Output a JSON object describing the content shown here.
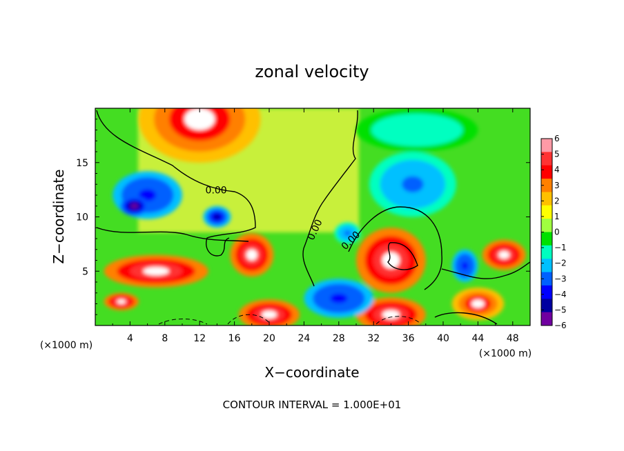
{
  "chart_data": {
    "type": "heatmap",
    "title": "zonal velocity",
    "xlabel": "X−coordinate",
    "ylabel": "Z−coordinate",
    "x_unit_left": "(×1000 m)",
    "x_unit_right": "(×1000 m)",
    "footnote": "CONTOUR INTERVAL = 1.000E+01",
    "xlim": [
      0,
      50
    ],
    "ylim": [
      0,
      20
    ],
    "x_ticks": [
      4,
      8,
      12,
      16,
      20,
      24,
      28,
      32,
      36,
      40,
      44,
      48
    ],
    "x_tick_labels": [
      "4",
      "8",
      "12",
      "16",
      "20",
      "24",
      "28",
      "32",
      "36",
      "40",
      "44",
      "48"
    ],
    "y_ticks": [
      5,
      10,
      15
    ],
    "y_tick_labels": [
      "5",
      "10",
      "15"
    ],
    "colorbar": {
      "min": -6,
      "max": 6,
      "ticks": [
        6,
        5,
        4,
        3,
        2,
        1,
        0,
        -1,
        -2,
        -3,
        -4,
        -5,
        -6
      ],
      "tick_labels": [
        "6",
        "5",
        "4",
        "3",
        "2",
        "1",
        "0",
        "−1",
        "−2",
        "−3",
        "−4",
        "−5",
        "−6"
      ],
      "colors": [
        "#ff9aa6",
        "#ff3333",
        "#ff0000",
        "#ff8000",
        "#ffc000",
        "#ffff00",
        "#a0ff40",
        "#00e000",
        "#00ffc0",
        "#00c0ff",
        "#0060ff",
        "#0000ff",
        "#0000a0",
        "#7000a0"
      ]
    },
    "contour_labels": [
      {
        "text": "0.00",
        "x": 13.9,
        "z": 12.4
      },
      {
        "text": "0.00",
        "x": 25.3,
        "z": 8.8,
        "rotate": -65
      },
      {
        "text": "0.00",
        "x": 29.4,
        "z": 7.8,
        "rotate": -45
      }
    ],
    "field_blobs": [
      {
        "x": 12,
        "z": 19,
        "value": 5,
        "rx": 7,
        "rz": 4
      },
      {
        "x": 6,
        "z": 12,
        "value": -4,
        "rx": 4,
        "rz": 2.2
      },
      {
        "x": 4.5,
        "z": 11,
        "value": -6,
        "rx": 1.6,
        "rz": 0.9
      },
      {
        "x": 14,
        "z": 10,
        "value": -5,
        "rx": 1.6,
        "rz": 1
      },
      {
        "x": 7,
        "z": 5,
        "value": 6,
        "rx": 6,
        "rz": 1.5
      },
      {
        "x": 18,
        "z": 6.5,
        "value": 6,
        "rx": 2.5,
        "rz": 2
      },
      {
        "x": 34,
        "z": 6,
        "value": 6,
        "rx": 4,
        "rz": 3
      },
      {
        "x": 47,
        "z": 6.5,
        "value": 6,
        "rx": 2.5,
        "rz": 1.4
      },
      {
        "x": 3,
        "z": 2.2,
        "value": 6,
        "rx": 2,
        "rz": 0.8
      },
      {
        "x": 20,
        "z": 1,
        "value": 6,
        "rx": 3.5,
        "rz": 1.4
      },
      {
        "x": 34,
        "z": 1,
        "value": 6,
        "rx": 4,
        "rz": 1.6
      },
      {
        "x": 44,
        "z": 2,
        "value": 5,
        "rx": 3,
        "rz": 1.5
      },
      {
        "x": 28,
        "z": 2.5,
        "value": -4,
        "rx": 4,
        "rz": 1.8
      },
      {
        "x": 36.5,
        "z": 13,
        "value": -3,
        "rx": 5,
        "rz": 3
      },
      {
        "x": 42.5,
        "z": 5.5,
        "value": -4,
        "rx": 1.5,
        "rz": 1.5
      },
      {
        "x": 29,
        "z": 8.5,
        "value": -3,
        "rx": 1.5,
        "rz": 1
      },
      {
        "x": 37,
        "z": 18,
        "value": -1.5,
        "rx": 7,
        "rz": 2
      }
    ]
  }
}
